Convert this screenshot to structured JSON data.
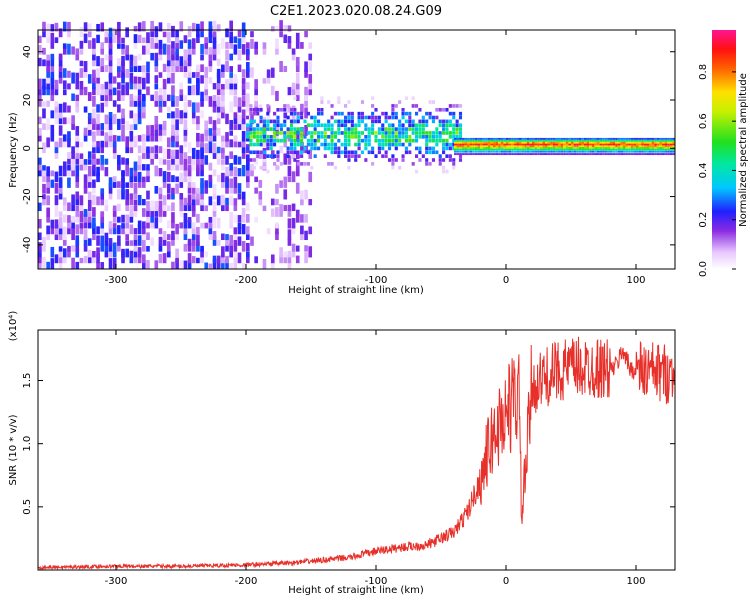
{
  "title": "C2E1.2023.020.08.24.G09",
  "chart_data": [
    {
      "type": "heatmap",
      "xlabel": "Height of straight line (km)",
      "ylabel": "Frequency (Hz)",
      "xlim": [
        -360,
        130
      ],
      "ylim": [
        -50,
        49
      ],
      "x_ticks": [
        -300,
        -200,
        -100,
        0,
        100
      ],
      "y_ticks": [
        -40,
        -20,
        0,
        20,
        40
      ],
      "colorbar": {
        "label": "Normalized spectral amplitude",
        "range": [
          0,
          0.97
        ],
        "ticks": [
          "0.0",
          "0.2",
          "0.4",
          "0.6",
          "0.8"
        ],
        "colormap": "white-purple-blue-cyan-green-yellow-red-magenta"
      },
      "features": [
        {
          "x_range": [
            -360,
            -200
          ],
          "freq_range": [
            -50,
            49
          ],
          "amplitude": "scattered 0.05-0.25",
          "description": "noise"
        },
        {
          "x_range": [
            -200,
            -150
          ],
          "freq_range": [
            -50,
            49
          ],
          "amplitude": "sparse 0.05-0.15"
        },
        {
          "x_range": [
            -200,
            -40
          ],
          "freq_center": 5,
          "freq_halfwidth": 10,
          "amplitude": "0.2-0.6"
        },
        {
          "x_range": [
            -40,
            130
          ],
          "freq_center": 1,
          "freq_halfwidth": 3,
          "amplitude": "0.6-0.95"
        }
      ]
    },
    {
      "type": "line",
      "xlabel": "Height of straight line (km)",
      "ylabel": "SNR (10 * v/v)",
      "y_multiplier": "(x10⁴)",
      "xlim": [
        -360,
        130
      ],
      "ylim": [
        0,
        1.9
      ],
      "x_ticks": [
        -300,
        -200,
        -100,
        0,
        100
      ],
      "y_ticks": [
        "0.5",
        "1.0",
        "1.5"
      ],
      "color": "#e8302a",
      "series": [
        {
          "x": [
            -360,
            -300,
            -250,
            -200,
            -180,
            -160,
            -140,
            -120,
            -100,
            -80,
            -60,
            -50,
            -40,
            -30,
            -20,
            -15,
            -10,
            -5,
            0,
            10,
            12,
            20,
            30,
            40,
            50,
            60,
            70,
            80,
            85,
            90,
            95,
            100,
            110,
            120,
            130
          ],
          "y": [
            0.02,
            0.03,
            0.03,
            0.04,
            0.05,
            0.06,
            0.08,
            0.1,
            0.15,
            0.18,
            0.2,
            0.25,
            0.3,
            0.45,
            0.7,
            0.9,
            1.05,
            1.15,
            1.25,
            1.4,
            0.4,
            1.45,
            1.52,
            1.58,
            1.6,
            1.6,
            1.6,
            1.58,
            1.62,
            1.75,
            1.6,
            1.58,
            1.57,
            1.56,
            1.55
          ]
        }
      ]
    }
  ]
}
